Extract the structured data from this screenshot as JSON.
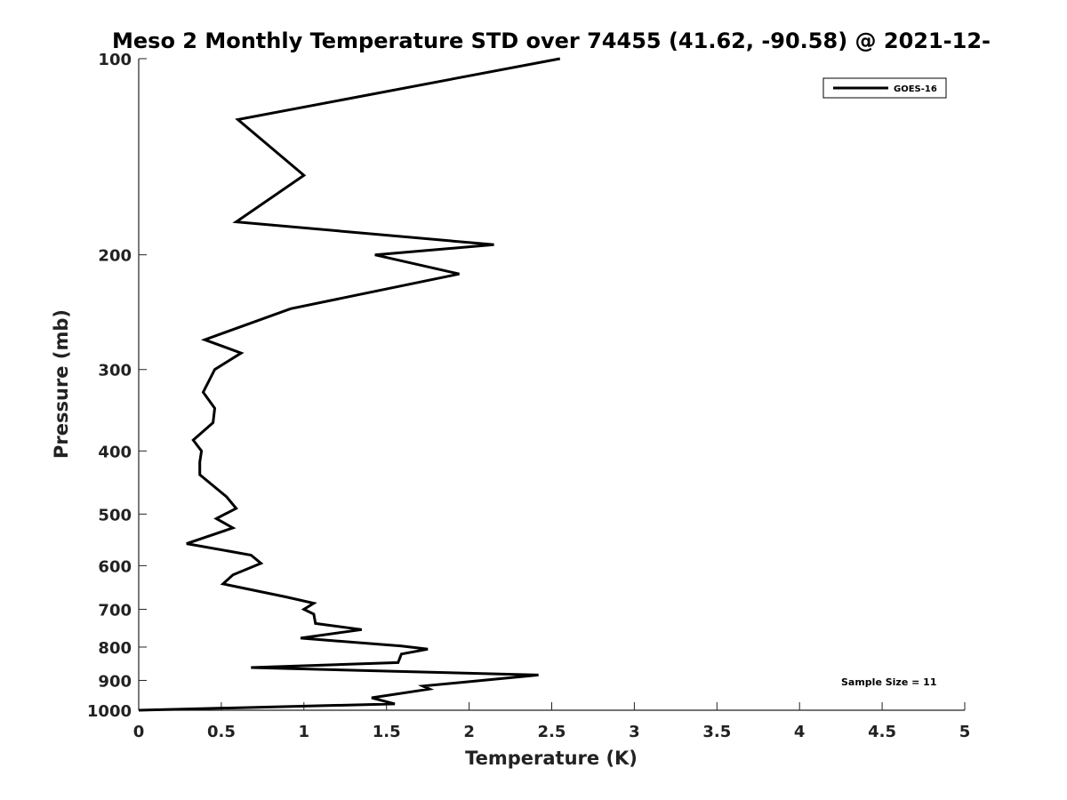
{
  "chart_data": {
    "type": "line",
    "title": "Meso 2 Monthly Temperature STD over 74455 (41.62, -90.58) @ 2021-12-",
    "xlabel": "Temperature (K)",
    "ylabel": "Pressure (mb)",
    "xlim": [
      0,
      5
    ],
    "ylim": [
      100,
      1000
    ],
    "y_scale": "log",
    "y_reversed": true,
    "x_ticks": [
      "0",
      "0.5",
      "1",
      "1.5",
      "2",
      "2.5",
      "3",
      "3.5",
      "4",
      "4.5",
      "5"
    ],
    "y_ticks": [
      "100",
      "200",
      "300",
      "400",
      "500",
      "600",
      "700",
      "800",
      "900",
      "1000"
    ],
    "grid": false,
    "legend_placement": "top-right",
    "annotation": "Sample Size = 11",
    "series": [
      {
        "name": "GOES-16",
        "color": "#000000",
        "points": [
          [
            2.55,
            100
          ],
          [
            0.6,
            124
          ],
          [
            1.0,
            151
          ],
          [
            0.59,
            178
          ],
          [
            2.15,
            193
          ],
          [
            1.43,
            200
          ],
          [
            1.94,
            214
          ],
          [
            0.92,
            242
          ],
          [
            0.4,
            270
          ],
          [
            0.62,
            283
          ],
          [
            0.46,
            300
          ],
          [
            0.39,
            325
          ],
          [
            0.46,
            344
          ],
          [
            0.45,
            362
          ],
          [
            0.33,
            385
          ],
          [
            0.38,
            400
          ],
          [
            0.37,
            416
          ],
          [
            0.37,
            435
          ],
          [
            0.53,
            470
          ],
          [
            0.59,
            490
          ],
          [
            0.47,
            508
          ],
          [
            0.57,
            525
          ],
          [
            0.29,
            555
          ],
          [
            0.68,
            578
          ],
          [
            0.74,
            595
          ],
          [
            0.57,
            620
          ],
          [
            0.51,
            640
          ],
          [
            0.89,
            670
          ],
          [
            1.06,
            685
          ],
          [
            1.0,
            700
          ],
          [
            1.06,
            712
          ],
          [
            1.07,
            736
          ],
          [
            1.35,
            752
          ],
          [
            0.98,
            775
          ],
          [
            1.59,
            797
          ],
          [
            1.75,
            806
          ],
          [
            1.59,
            820
          ],
          [
            1.57,
            845
          ],
          [
            0.68,
            860
          ],
          [
            2.42,
            883
          ],
          [
            1.72,
            918
          ],
          [
            1.76,
            928
          ],
          [
            1.41,
            957
          ],
          [
            1.55,
            978
          ],
          [
            0.0,
            1000
          ]
        ]
      }
    ]
  }
}
